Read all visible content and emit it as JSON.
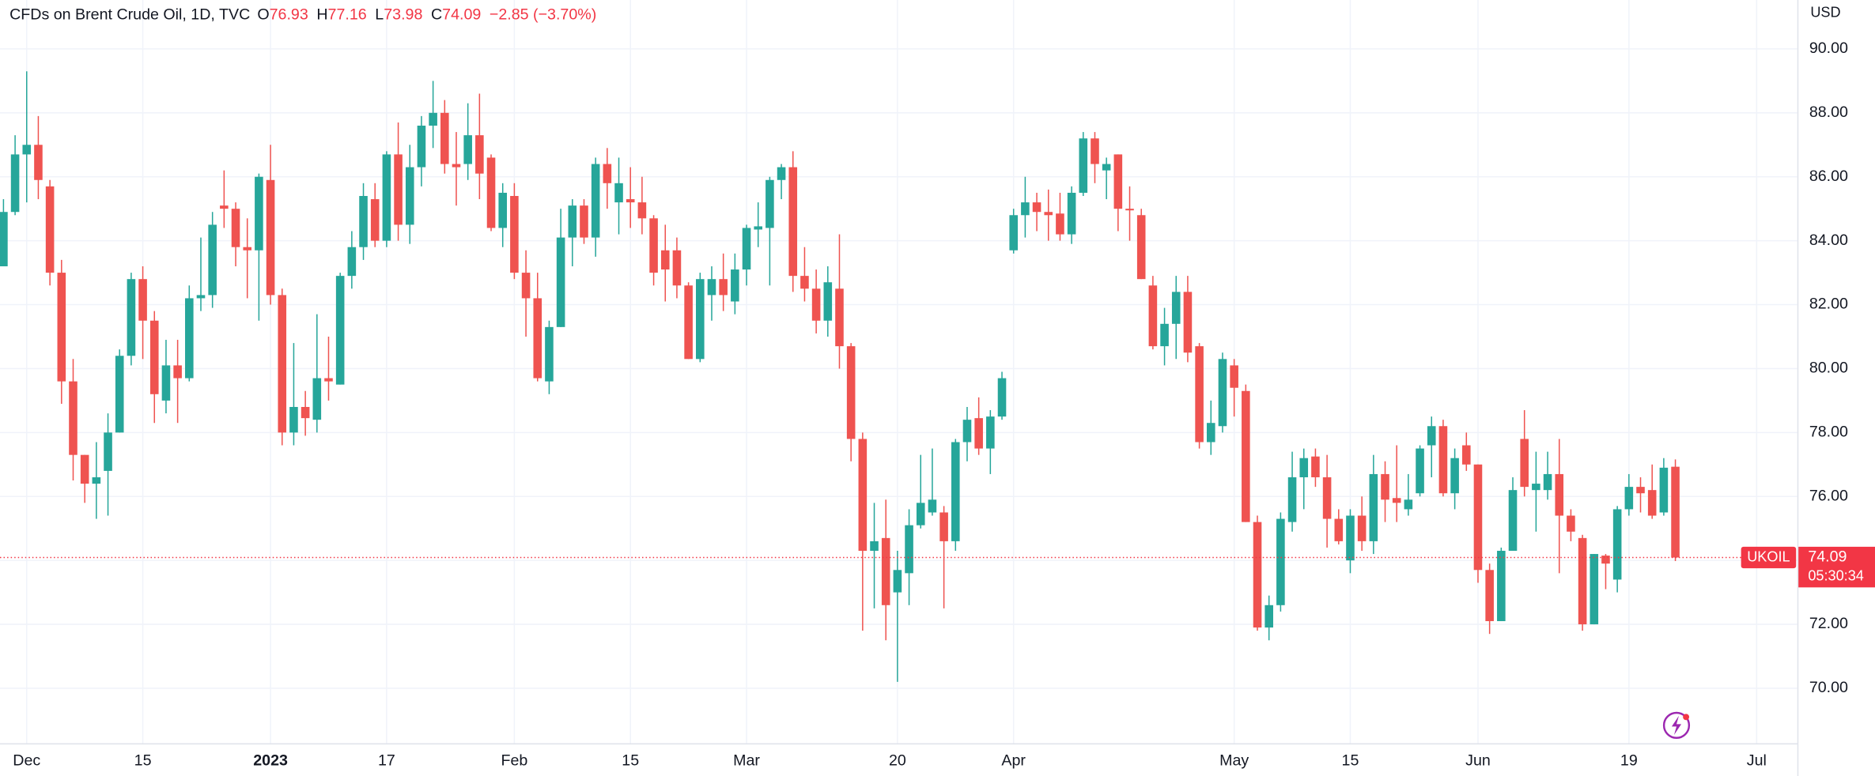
{
  "chart_data": {
    "type": "candlestick",
    "title": "CFDs on Brent Crude Oil, 1D, TVC",
    "ohlc_labels": [
      "O",
      "H",
      "L",
      "C"
    ],
    "change_label": "−2.85 (−3.70%)",
    "currency": "USD",
    "symbol": "UKOIL",
    "countdown": "05:30:34",
    "up_color": "#26a69a",
    "down_color": "#ef5350",
    "grid": true,
    "xlim": [
      -0.3,
      154.5
    ],
    "xticks": [
      {
        "value": 2,
        "label": "Dec"
      },
      {
        "value": 12,
        "label": "15"
      },
      {
        "value": 23,
        "label": "2023"
      },
      {
        "value": 33,
        "label": "17"
      },
      {
        "value": 44,
        "label": "Feb"
      },
      {
        "value": 54,
        "label": "15"
      },
      {
        "value": 64,
        "label": "Mar"
      },
      {
        "value": 77,
        "label": "20"
      },
      {
        "value": 87,
        "label": "Apr"
      },
      {
        "value": 106,
        "label": "May"
      },
      {
        "value": 116,
        "label": "15"
      },
      {
        "value": 127,
        "label": "Jun"
      },
      {
        "value": 140,
        "label": "19"
      },
      {
        "value": 151,
        "label": "Jul"
      }
    ],
    "ylim": [
      68.28,
      91.53
    ],
    "yticks": [
      {
        "value": 70,
        "label": "70.00"
      },
      {
        "value": 72,
        "label": "72.00"
      },
      {
        "value": 74,
        "label": "74.00"
      },
      {
        "value": 76,
        "label": "76.00"
      },
      {
        "value": 78,
        "label": "78.00"
      },
      {
        "value": 80,
        "label": "80.00"
      },
      {
        "value": 82,
        "label": "82.00"
      },
      {
        "value": 84,
        "label": "84.00"
      },
      {
        "value": 86,
        "label": "86.00"
      },
      {
        "value": 88,
        "label": "88.00"
      },
      {
        "value": 90,
        "label": "90.00"
      }
    ],
    "open": [
      83.2,
      84.9,
      86.7,
      87.0,
      85.7,
      83.0,
      79.6,
      77.3,
      76.4,
      76.8,
      78.0,
      80.4,
      82.8,
      81.5,
      79.0,
      80.1,
      79.7,
      82.2,
      82.3,
      85.1,
      85.0,
      83.8,
      83.7,
      85.9,
      82.3,
      78.0,
      78.8,
      78.4,
      79.7,
      79.5,
      82.9,
      83.8,
      85.3,
      84.0,
      86.7,
      84.5,
      86.3,
      87.6,
      88.0,
      86.4,
      86.4,
      87.3,
      86.6,
      84.4,
      85.4,
      83.0,
      82.2,
      79.6,
      81.3,
      84.1,
      85.1,
      84.1,
      86.4,
      85.2,
      85.3,
      85.2,
      84.7,
      83.7,
      83.7,
      82.6,
      80.3,
      82.3,
      82.8,
      82.1,
      83.1,
      84.35,
      84.4,
      85.9,
      86.3,
      82.9,
      82.5,
      81.5,
      82.5,
      80.7,
      77.8,
      74.3,
      74.7,
      73.0,
      73.6,
      75.1,
      75.5,
      75.5,
      74.6,
      77.7,
      78.45,
      77.5,
      78.5,
      83.7,
      84.8,
      85.2,
      84.9,
      84.85,
      84.2,
      85.5,
      87.2,
      86.2,
      86.7,
      85.0,
      84.8,
      82.6,
      80.7,
      81.4,
      82.4,
      80.7,
      77.7,
      78.2,
      80.1,
      79.3,
      75.2,
      71.9,
      72.6,
      75.2,
      76.6,
      77.25,
      76.6,
      75.3,
      74.0,
      75.4,
      74.6,
      76.7,
      75.95,
      75.6,
      76.1,
      77.6,
      78.2,
      76.1,
      77.6,
      77.0,
      73.7,
      72.1,
      74.3,
      77.8,
      76.2,
      76.2,
      76.7,
      75.4,
      74.7,
      72.0,
      74.15,
      73.4,
      75.6,
      76.3,
      76.2,
      75.5,
      76.93
    ],
    "high": [
      85.3,
      87.3,
      89.3,
      87.9,
      85.9,
      83.4,
      80.3,
      77.3,
      77.7,
      78.6,
      80.6,
      83.0,
      83.2,
      81.8,
      80.9,
      80.9,
      82.6,
      84.1,
      84.9,
      86.2,
      85.2,
      84.7,
      86.1,
      87.0,
      82.5,
      80.8,
      79.3,
      81.7,
      81.0,
      83.0,
      84.3,
      85.8,
      85.8,
      86.8,
      87.7,
      87.0,
      87.9,
      89.0,
      88.4,
      87.4,
      88.3,
      88.6,
      86.7,
      85.8,
      85.8,
      83.7,
      83.0,
      81.5,
      85.0,
      85.3,
      85.3,
      86.6,
      86.9,
      86.6,
      86.3,
      86.0,
      84.8,
      84.5,
      84.1,
      82.7,
      83.0,
      83.2,
      83.6,
      83.6,
      84.5,
      85.2,
      86.0,
      86.4,
      86.8,
      83.8,
      83.1,
      83.2,
      84.2,
      80.8,
      78.0,
      75.8,
      75.9,
      74.3,
      75.6,
      77.3,
      77.5,
      75.7,
      77.8,
      78.8,
      79.1,
      78.7,
      79.9,
      85.0,
      86.0,
      85.5,
      85.6,
      85.5,
      85.7,
      87.4,
      87.4,
      86.6,
      86.7,
      85.7,
      85.0,
      82.9,
      81.9,
      82.9,
      82.9,
      80.8,
      79.0,
      80.5,
      80.3,
      79.5,
      75.4,
      72.9,
      75.5,
      77.4,
      77.5,
      77.5,
      77.3,
      75.6,
      75.6,
      76.0,
      77.3,
      77.1,
      77.6,
      76.7,
      77.6,
      78.5,
      78.4,
      77.5,
      78.0,
      77.0,
      73.9,
      74.4,
      76.6,
      78.7,
      77.4,
      77.4,
      77.8,
      75.6,
      74.8,
      74.2,
      74.2,
      75.7,
      76.7,
      76.6,
      77.0,
      77.2,
      77.16
    ],
    "low": [
      83.2,
      84.8,
      85.2,
      85.3,
      82.6,
      78.9,
      76.5,
      75.8,
      75.3,
      75.4,
      78.0,
      80.1,
      80.3,
      78.3,
      78.6,
      78.3,
      79.6,
      81.8,
      81.9,
      84.4,
      83.2,
      82.2,
      81.5,
      82.0,
      77.6,
      77.6,
      77.9,
      78.0,
      79.0,
      79.5,
      82.5,
      83.4,
      83.8,
      83.8,
      84.0,
      83.9,
      85.7,
      86.9,
      86.1,
      85.1,
      85.9,
      85.3,
      84.3,
      83.8,
      82.8,
      81.0,
      79.6,
      79.2,
      81.3,
      83.2,
      83.9,
      83.5,
      85.0,
      84.2,
      84.4,
      84.2,
      82.6,
      82.1,
      82.2,
      80.3,
      80.2,
      81.5,
      81.8,
      81.7,
      82.6,
      83.8,
      82.6,
      85.3,
      82.4,
      82.1,
      81.1,
      81.0,
      80.0,
      77.1,
      71.8,
      72.5,
      71.5,
      70.2,
      72.6,
      75.0,
      75.4,
      72.5,
      74.3,
      77.1,
      77.3,
      76.7,
      78.4,
      83.6,
      84.1,
      84.3,
      84.0,
      84.0,
      83.9,
      85.4,
      85.8,
      85.3,
      84.3,
      84.0,
      82.8,
      80.6,
      80.1,
      80.3,
      80.2,
      77.5,
      77.3,
      78.0,
      78.5,
      75.2,
      71.8,
      71.5,
      72.4,
      74.9,
      75.6,
      76.3,
      74.4,
      74.5,
      73.6,
      74.3,
      74.2,
      75.2,
      75.2,
      75.4,
      76.0,
      76.6,
      76.0,
      75.6,
      76.8,
      73.3,
      71.7,
      72.1,
      74.3,
      76.0,
      74.9,
      75.9,
      73.6,
      74.6,
      71.8,
      72.0,
      73.1,
      73.0,
      75.4,
      75.5,
      75.3,
      75.4,
      73.98
    ],
    "close": [
      84.9,
      86.7,
      87.0,
      85.9,
      83.0,
      79.6,
      77.3,
      76.4,
      76.6,
      78.0,
      80.4,
      82.8,
      81.5,
      79.2,
      80.1,
      79.7,
      82.2,
      82.3,
      84.5,
      85.0,
      83.8,
      83.7,
      86.0,
      82.3,
      78.0,
      78.8,
      78.45,
      79.7,
      79.6,
      82.9,
      83.8,
      85.4,
      84.0,
      86.7,
      84.5,
      86.3,
      87.6,
      88.0,
      86.4,
      86.3,
      87.3,
      86.1,
      84.4,
      85.5,
      83.0,
      82.2,
      79.7,
      81.3,
      84.1,
      85.1,
      84.1,
      86.4,
      85.8,
      85.8,
      85.2,
      84.7,
      83.0,
      83.1,
      82.6,
      80.3,
      82.8,
      82.8,
      82.3,
      83.1,
      84.4,
      84.45,
      85.9,
      86.3,
      82.9,
      82.5,
      81.5,
      82.7,
      80.7,
      77.8,
      74.3,
      74.6,
      72.6,
      73.7,
      75.1,
      75.8,
      75.9,
      74.6,
      77.7,
      78.4,
      77.5,
      78.5,
      79.7,
      84.8,
      85.2,
      84.9,
      84.8,
      84.2,
      85.5,
      87.2,
      86.4,
      86.4,
      85.0,
      84.95,
      82.8,
      80.7,
      81.4,
      82.4,
      80.5,
      77.7,
      78.3,
      80.3,
      79.4,
      75.2,
      71.9,
      72.6,
      75.3,
      76.6,
      77.2,
      76.6,
      75.3,
      74.6,
      75.4,
      74.6,
      76.7,
      75.9,
      75.8,
      75.9,
      77.5,
      78.2,
      76.1,
      77.2,
      77.0,
      73.7,
      72.1,
      74.3,
      76.2,
      76.3,
      76.4,
      76.7,
      75.4,
      74.9,
      72.0,
      74.2,
      73.9,
      75.6,
      76.3,
      76.1,
      75.4,
      76.9,
      74.09
    ]
  }
}
